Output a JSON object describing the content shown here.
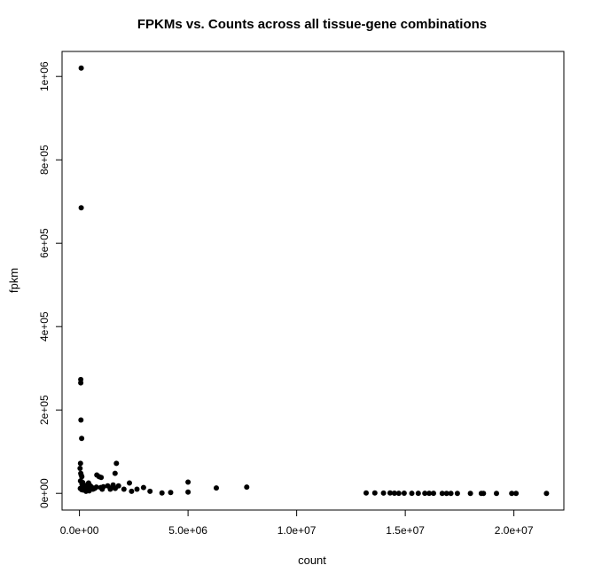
{
  "chart_data": {
    "type": "scatter",
    "title": "FPKMs vs. Counts across all tissue-gene combinations",
    "xlabel": "count",
    "ylabel": "fpkm",
    "xlim": [
      -800000,
      22300000
    ],
    "ylim": [
      -40000,
      1060000
    ],
    "x_ticks": [
      0,
      5000000,
      10000000,
      15000000,
      20000000
    ],
    "x_tick_labels": [
      "0.0e+00",
      "5.0e+06",
      "1.0e+07",
      "1.5e+07",
      "2.0e+07"
    ],
    "y_ticks": [
      0,
      200000,
      400000,
      600000,
      800000,
      1000000
    ],
    "y_tick_labels": [
      "0e+00",
      "2e+05",
      "4e+05",
      "6e+05",
      "8e+05",
      "1e+06"
    ],
    "grid": false,
    "legend": "none",
    "point_color": "#000000",
    "series": [
      {
        "x": [
          80000,
          80000,
          60000,
          60000,
          70000,
          100000,
          50000,
          30000,
          60000,
          80000,
          110000,
          50000,
          90000,
          150000,
          120000,
          200000,
          40000,
          100000,
          160000,
          220000,
          280000,
          360000,
          420000,
          500000,
          560000,
          620000,
          300000,
          350000,
          450000,
          700000,
          800000,
          900000,
          1000000,
          1100000,
          780000,
          980000,
          1050000,
          1300000,
          1420000,
          1500000,
          1550000,
          1640000,
          1700000,
          1800000,
          2050000,
          2300000,
          1600000,
          1650000,
          2400000,
          2650000,
          2950000,
          3250000,
          5000000,
          6300000,
          7700000,
          5000000,
          4200000,
          3800000,
          13200000,
          13600000,
          14000000,
          14300000,
          14500000,
          14700000,
          14950000,
          15300000,
          15600000,
          15900000,
          16100000,
          16300000,
          16700000,
          16900000,
          17100000,
          17400000,
          18000000,
          18500000,
          18600000,
          19200000,
          19900000,
          20100000,
          21500000
        ],
        "y": [
          1020000,
          685000,
          273000,
          265000,
          176000,
          132000,
          72000,
          60000,
          48000,
          44000,
          40000,
          30000,
          28000,
          26000,
          22000,
          18000,
          12000,
          9000,
          8000,
          15000,
          8000,
          20000,
          25000,
          18000,
          15000,
          10000,
          5000,
          14000,
          6000,
          12000,
          44000,
          40000,
          38000,
          16000,
          15000,
          14000,
          10000,
          18000,
          10000,
          14000,
          20000,
          48000,
          72000,
          18000,
          10000,
          25000,
          14000,
          12000,
          5000,
          10000,
          14000,
          5000,
          27000,
          13000,
          15000,
          3000,
          2000,
          1000,
          1000,
          800,
          600,
          800,
          500,
          300,
          500,
          300,
          200,
          200,
          200,
          200,
          100,
          100,
          100,
          100,
          100,
          100,
          100,
          100,
          100,
          100,
          100
        ]
      }
    ]
  }
}
